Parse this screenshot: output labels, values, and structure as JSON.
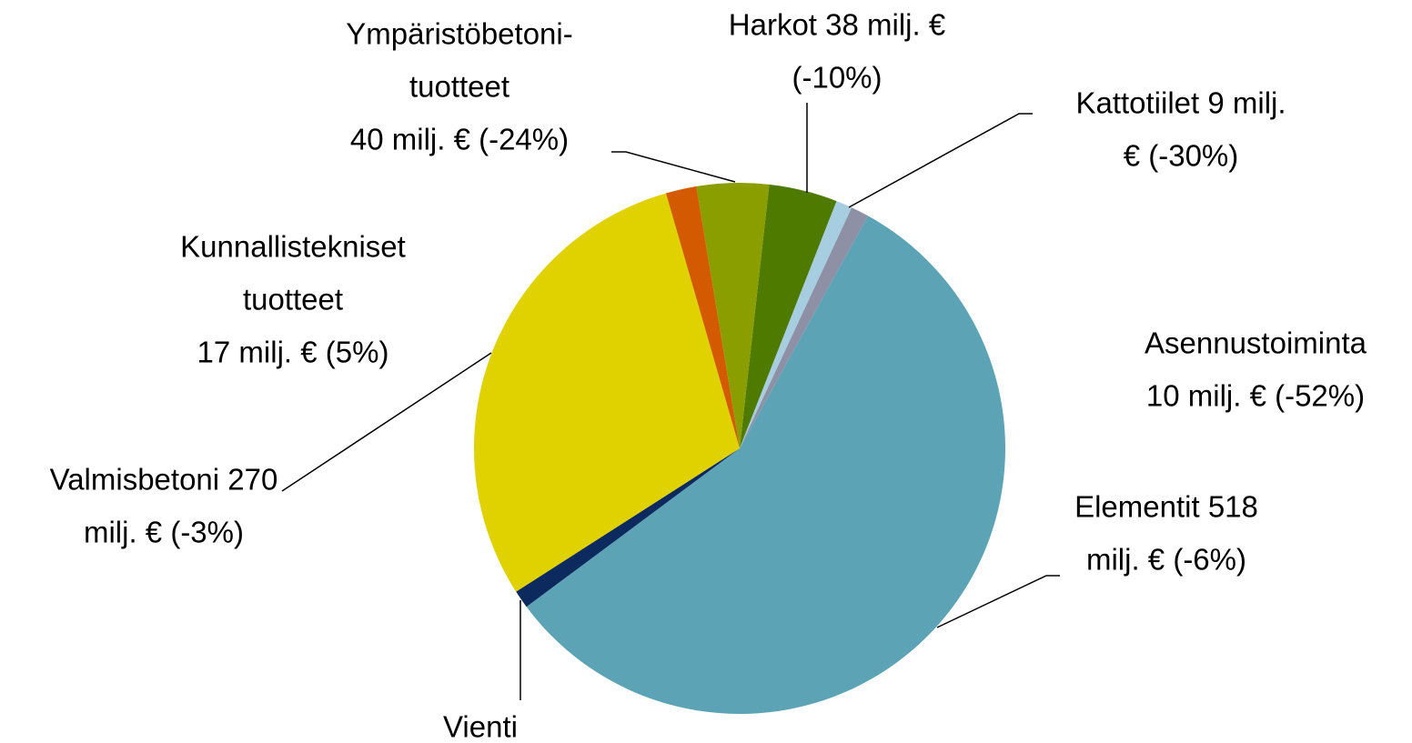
{
  "chart_data": {
    "type": "pie",
    "labels": [
      [
        "Harkot 38 milj. €",
        "(-10%)"
      ],
      [
        "Kattotiilet 9 milj.",
        "€ (-30%)"
      ],
      [
        "Asennustoiminta",
        "10 milj. €  (-52%)"
      ],
      [
        "Elementit 518",
        "milj. € (-6%)"
      ],
      [
        "Vienti"
      ],
      [
        "Valmisbetoni 270",
        "milj. € (-3%)"
      ],
      [
        "Kunnallistekniset",
        "tuotteet",
        "17 milj. € (5%)"
      ],
      [
        "Ympäristöbetoni-",
        "tuotteet",
        "40 milj. € (-24%)"
      ]
    ],
    "values": [
      38,
      9,
      10,
      518,
      10,
      270,
      17,
      40
    ],
    "colors": [
      "#4e7a00",
      "#a6cde0",
      "#8e91a6",
      "#5ba3b5",
      "#0d2a5e",
      "#e0d100",
      "#d45a00",
      "#8a9e00"
    ]
  }
}
